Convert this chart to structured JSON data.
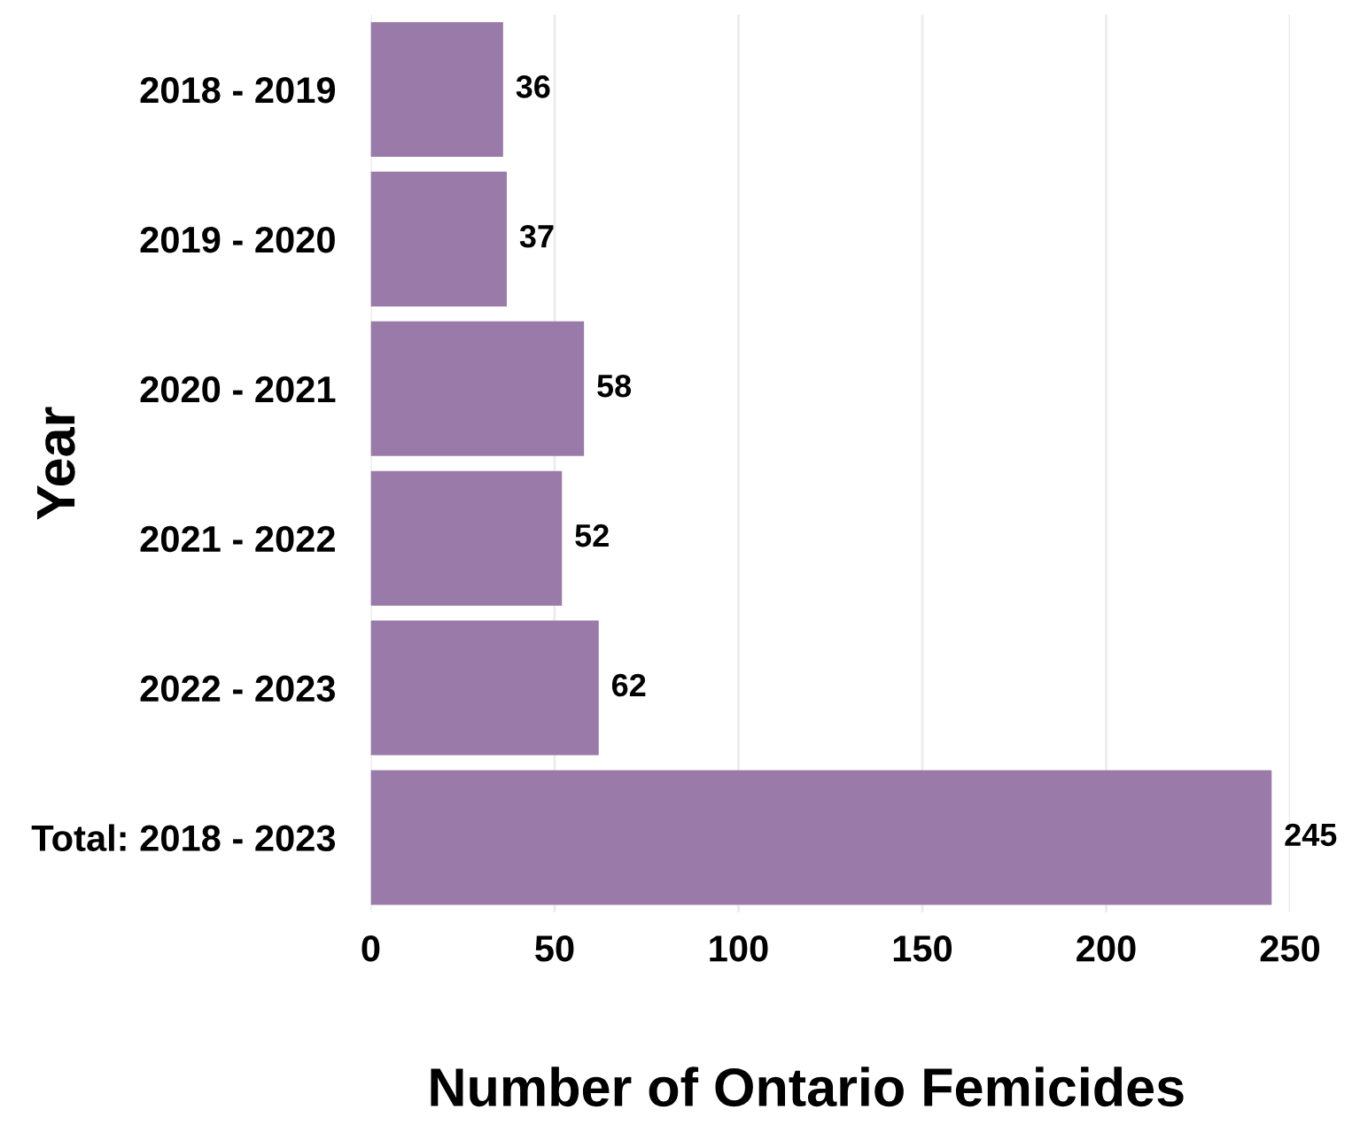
{
  "chart_data": {
    "type": "bar",
    "orientation": "horizontal",
    "xlabel": "Number of Ontario Femicides",
    "ylabel": "Year",
    "categories": [
      "2018 - 2019",
      "2019 - 2020",
      "2020 - 2021",
      "2021 - 2022",
      "2022 - 2023",
      "Total: 2018 - 2023"
    ],
    "values": [
      36,
      37,
      58,
      52,
      62,
      245
    ],
    "color": "#9a7aa8",
    "xlim": [
      0,
      250
    ],
    "xticks": [
      0,
      50,
      100,
      150,
      200,
      250
    ],
    "grid": "x",
    "data_labels": true
  }
}
